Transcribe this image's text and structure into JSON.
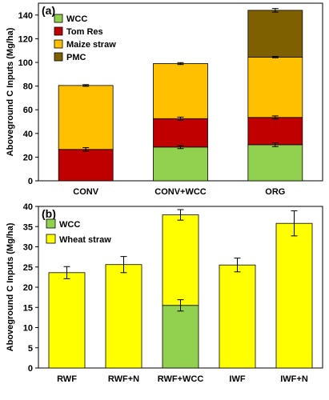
{
  "chart_data": [
    {
      "type": "bar",
      "stacked": true,
      "panel_label": "(a)",
      "ylabel": "Aboveground C Inputs (Mg/ha)",
      "ylim": [
        0,
        150
      ],
      "yticks": [
        0,
        20,
        40,
        60,
        80,
        100,
        120,
        140
      ],
      "categories": [
        "CONV",
        "CONV+WCC",
        "ORG"
      ],
      "series": [
        {
          "name": "WCC",
          "color": "#92d050",
          "values": [
            0,
            28.5,
            30.5
          ]
        },
        {
          "name": "Tom Res",
          "color": "#c00000",
          "values": [
            26.5,
            24,
            23
          ]
        },
        {
          "name": "Maize straw",
          "color": "#ffc000",
          "values": [
            54,
            46.5,
            51
          ]
        },
        {
          "name": "PMC",
          "color": "#7f6000",
          "values": [
            0,
            0,
            39.5
          ]
        }
      ],
      "error_bars": [
        {
          "category": "CONV",
          "at": 26.5,
          "err": 1.5
        },
        {
          "category": "CONV",
          "at": 80.5,
          "err": 0.7
        },
        {
          "category": "CONV+WCC",
          "at": 28.5,
          "err": 1.3
        },
        {
          "category": "CONV+WCC",
          "at": 52.5,
          "err": 1.3
        },
        {
          "category": "CONV+WCC",
          "at": 99,
          "err": 0.8
        },
        {
          "category": "ORG",
          "at": 30.5,
          "err": 1.6
        },
        {
          "category": "ORG",
          "at": 53.5,
          "err": 1.3
        },
        {
          "category": "ORG",
          "at": 104.5,
          "err": 0.6
        },
        {
          "category": "ORG",
          "at": 144,
          "err": 1.5
        }
      ],
      "legend": "top-left"
    },
    {
      "type": "bar",
      "stacked": true,
      "panel_label": "(b)",
      "ylabel": "Aboveground C Inputs (Mg/ha)",
      "ylim": [
        0,
        40
      ],
      "yticks": [
        0,
        5,
        10,
        15,
        20,
        25,
        30,
        35,
        40
      ],
      "categories": [
        "RWF",
        "RWF+N",
        "RWF+WCC",
        "IWF",
        "IWF+N"
      ],
      "series": [
        {
          "name": "WCC",
          "color": "#92d050",
          "values": [
            0,
            0,
            15.5,
            0,
            0
          ]
        },
        {
          "name": "Wheat straw",
          "color": "#ffff00",
          "values": [
            23.6,
            25.6,
            22.4,
            25.5,
            35.8
          ]
        }
      ],
      "error_bars": [
        {
          "category": "RWF",
          "at": 23.6,
          "err": 1.5
        },
        {
          "category": "RWF+N",
          "at": 25.6,
          "err": 2.0
        },
        {
          "category": "RWF+WCC",
          "at": 15.5,
          "err": 1.4
        },
        {
          "category": "RWF+WCC",
          "at": 37.9,
          "err": 1.3
        },
        {
          "category": "IWF",
          "at": 25.5,
          "err": 1.7
        },
        {
          "category": "IWF+N",
          "at": 35.8,
          "err": 3.1
        }
      ],
      "legend": "top-left"
    }
  ]
}
